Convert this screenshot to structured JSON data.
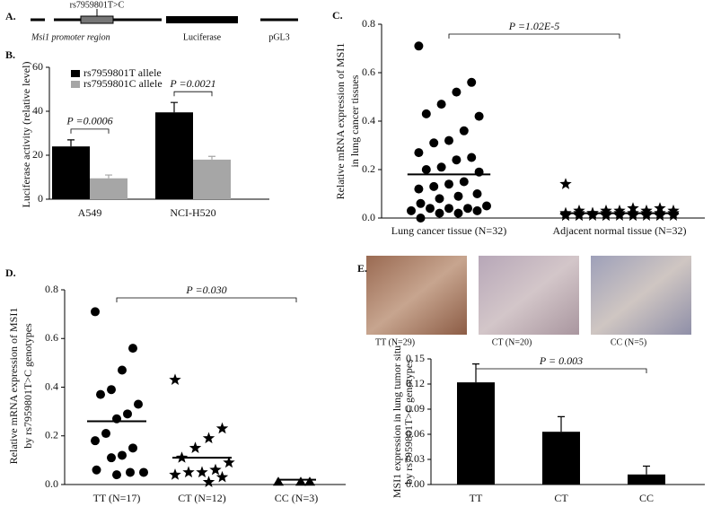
{
  "diagram": {
    "panel": "A.",
    "snp": "rs7959801T>C",
    "labels": [
      "Msi1 promoter region",
      "Luciferase",
      "pGL3"
    ]
  },
  "chart_data": [
    {
      "type": "bar",
      "panel": "B.",
      "ylabel": [
        "Luciferase activity (relative level)"
      ],
      "categories": [
        "A549",
        "NCI-H520"
      ],
      "series": [
        {
          "name": "rs7959801T allele",
          "color": "#000000",
          "values": [
            24,
            39.5
          ],
          "errors": [
            3,
            4.5
          ]
        },
        {
          "name": "rs7959801C allele",
          "color": "#a6a6a6",
          "values": [
            9.5,
            18
          ],
          "errors": [
            1.5,
            1.5
          ]
        }
      ],
      "ylim": [
        0,
        60
      ],
      "yticks": [
        0,
        20,
        40,
        60
      ],
      "annotations": [
        "P =0.0006",
        "P =0.0021"
      ]
    },
    {
      "type": "dot",
      "panel": "C.",
      "ylabel": [
        "Relative mRNA expression of MSI1",
        "in lung cancer tissues"
      ],
      "categories": [
        "Lung cancer tissue (N=32)",
        "Adjacent normal tissue (N=32)"
      ],
      "markers": [
        "circle",
        "star"
      ],
      "color": "#000000",
      "values": [
        [
          0.71,
          0.56,
          0.52,
          0.47,
          0.43,
          0.42,
          0.36,
          0.32,
          0.31,
          0.27,
          0.25,
          0.24,
          0.21,
          0.2,
          0.19,
          0.15,
          0.14,
          0.13,
          0.12,
          0.1,
          0.09,
          0.08,
          0.06,
          0.05,
          0.04,
          0.04,
          0.04,
          0.03,
          0.03,
          0.02,
          0.02,
          0.0
        ],
        [
          0.14,
          0.04,
          0.04,
          0.03,
          0.03,
          0.03,
          0.03,
          0.03,
          0.02,
          0.02,
          0.02,
          0.02,
          0.02,
          0.02,
          0.02,
          0.02,
          0.02,
          0.02,
          0.01,
          0.01,
          0.01,
          0.01,
          0.01,
          0.01,
          0.01,
          0.01,
          0.01,
          0.01,
          0.01,
          0.01,
          0.01,
          0.01
        ]
      ],
      "means": [
        0.18,
        0.02
      ],
      "ylim": [
        0,
        0.8
      ],
      "yticks": [
        {
          "value": 0,
          "label": "0.0"
        },
        0.2,
        0.4,
        0.6,
        0.8
      ],
      "annotations": [
        "P =1.02E-5"
      ]
    },
    {
      "type": "dot",
      "panel": "D.",
      "ylabel": [
        "Relative mRNA expression of MSI1",
        "by rs7959801T>C genotypes"
      ],
      "categories": [
        "TT (N=17)",
        "CT (N=12)",
        "CC (N=3)"
      ],
      "markers": [
        "circle",
        "star",
        "triangle"
      ],
      "color": "#000000",
      "values": [
        [
          0.71,
          0.56,
          0.47,
          0.39,
          0.37,
          0.33,
          0.29,
          0.27,
          0.21,
          0.18,
          0.15,
          0.12,
          0.11,
          0.06,
          0.05,
          0.05,
          0.04
        ],
        [
          0.43,
          0.23,
          0.19,
          0.15,
          0.11,
          0.09,
          0.06,
          0.05,
          0.05,
          0.04,
          0.03,
          0.01
        ],
        [
          0.01,
          0.01,
          0.01
        ]
      ],
      "means": [
        0.26,
        0.11,
        0.02
      ],
      "ylim": [
        0,
        0.8
      ],
      "yticks": [
        {
          "value": 0,
          "label": "0.0"
        },
        0.2,
        0.4,
        0.6,
        0.8
      ],
      "annotations": [
        "P =0.030"
      ]
    },
    {
      "type": "bar",
      "panel": "E.",
      "ylabel": [
        "MSI1 expression in lung tumor situ",
        "by rs7959801T>C  genotypes"
      ],
      "image_captions": [
        "TT (N=29)",
        "CT (N=20)",
        "CC (N=5)"
      ],
      "categories": [
        "TT",
        "CT",
        "CC"
      ],
      "series": [
        {
          "color": "#000000",
          "values": [
            0.122,
            0.063,
            0.012
          ],
          "errors": [
            0.022,
            0.018,
            0.01
          ]
        }
      ],
      "ylim": [
        0,
        0.15
      ],
      "yticks": [
        {
          "value": 0,
          "label": "0.00"
        },
        0.03,
        0.06,
        0.09,
        0.12,
        0.15
      ],
      "annotations": [
        "P = 0.003"
      ]
    }
  ]
}
